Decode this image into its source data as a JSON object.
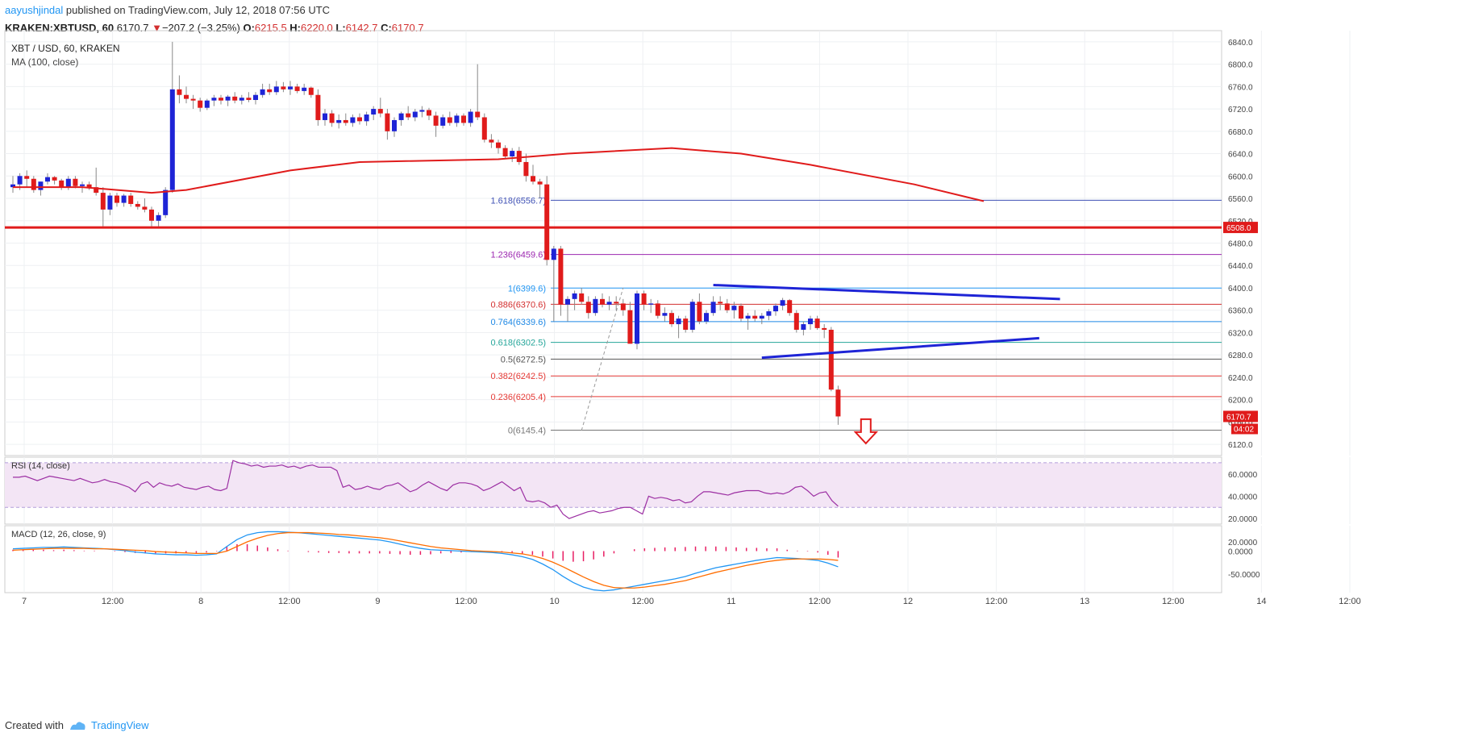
{
  "header": {
    "publisher": "aayushjindal",
    "published_text": "published on TradingView.com, July 12, 2018 07:56 UTC",
    "symbol": "KRAKEN:XBTUSD, 60",
    "last": "6170.7",
    "change": "−207.2 (−3.25%)",
    "o_label": "O:",
    "o": "6215.5",
    "h_label": "H:",
    "h": "6220.0",
    "l_label": "L:",
    "l": "6142.7",
    "c_label": "C:",
    "c": "6170.7",
    "arrow": "▼"
  },
  "footer": {
    "created_with": "Created with",
    "brand": "TradingView"
  },
  "chart_data": {
    "type": "candlestick",
    "title": "XBT / USD, 60, KRAKEN",
    "indicator_label": "MA (100, close)",
    "colors": {
      "up": "#1e24d6",
      "down": "#e01b1b",
      "ma": "#e01b1b",
      "rsi": "#9c2fa3",
      "macd": "#2196f3",
      "signal": "#ff6d00",
      "hist": "#e91e63"
    },
    "y_range": [
      6100,
      6860
    ],
    "y_ticks": [
      "6840.0",
      "6800.0",
      "6760.0",
      "6720.0",
      "6680.0",
      "6640.0",
      "6600.0",
      "6560.0",
      "6520.0",
      "6480.0",
      "6440.0",
      "6400.0",
      "6360.0",
      "6320.0",
      "6280.0",
      "6240.0",
      "6200.0",
      "6160.0",
      "6120.0"
    ],
    "x_ticks": [
      "7",
      "12:00",
      "8",
      "12:00",
      "9",
      "12:00",
      "10",
      "12:00",
      "11",
      "12:00",
      "12",
      "12:00",
      "13",
      "12:00",
      "14",
      "12:00"
    ],
    "support_line": {
      "value": 6508.0,
      "label": "6508.0"
    },
    "last_price": {
      "label": "6170.7",
      "countdown": "04:02"
    },
    "fib_levels": [
      {
        "label": "1.618(6556.7)",
        "value": 6556.7,
        "color": "#3f51b5"
      },
      {
        "label": "1.236(6459.6)",
        "value": 6459.6,
        "color": "#9c27b0"
      },
      {
        "label": "1(6399.6)",
        "value": 6399.6,
        "color": "#2196f3"
      },
      {
        "label": "0.886(6370.6)",
        "value": 6370.6,
        "color": "#d32f2f"
      },
      {
        "label": "0.764(6339.6)",
        "value": 6339.6,
        "color": "#1e88e5"
      },
      {
        "label": "0.618(6302.5)",
        "value": 6302.5,
        "color": "#26a69a"
      },
      {
        "label": "0.5(6272.5)",
        "value": 6272.5,
        "color": "#555555"
      },
      {
        "label": "0.382(6242.5)",
        "value": 6242.5,
        "color": "#e53935"
      },
      {
        "label": "0.236(6205.4)",
        "value": 6205.4,
        "color": "#e53935"
      },
      {
        "label": "0(6145.4)",
        "value": 6145.4,
        "color": "#777777"
      }
    ],
    "candles": [
      [
        6580,
        6600,
        6570,
        6585
      ],
      [
        6585,
        6605,
        6575,
        6600
      ],
      [
        6600,
        6610,
        6580,
        6595
      ],
      [
        6595,
        6600,
        6570,
        6575
      ],
      [
        6575,
        6590,
        6565,
        6590
      ],
      [
        6590,
        6605,
        6585,
        6598
      ],
      [
        6598,
        6600,
        6585,
        6592
      ],
      [
        6592,
        6595,
        6575,
        6580
      ],
      [
        6580,
        6600,
        6575,
        6595
      ],
      [
        6595,
        6600,
        6578,
        6582
      ],
      [
        6582,
        6590,
        6570,
        6585
      ],
      [
        6585,
        6590,
        6575,
        6580
      ],
      [
        6580,
        6615,
        6565,
        6570
      ],
      [
        6570,
        6580,
        6510,
        6540
      ],
      [
        6540,
        6570,
        6530,
        6565
      ],
      [
        6565,
        6570,
        6545,
        6552
      ],
      [
        6552,
        6568,
        6545,
        6565
      ],
      [
        6565,
        6570,
        6545,
        6550
      ],
      [
        6550,
        6555,
        6540,
        6545
      ],
      [
        6545,
        6560,
        6535,
        6540
      ],
      [
        6540,
        6545,
        6510,
        6520
      ],
      [
        6520,
        6535,
        6510,
        6530
      ],
      [
        6530,
        6580,
        6525,
        6575
      ],
      [
        6575,
        6840,
        6570,
        6755
      ],
      [
        6755,
        6780,
        6730,
        6745
      ],
      [
        6745,
        6760,
        6730,
        6738
      ],
      [
        6738,
        6745,
        6720,
        6735
      ],
      [
        6735,
        6740,
        6715,
        6722
      ],
      [
        6722,
        6738,
        6718,
        6735
      ],
      [
        6735,
        6745,
        6725,
        6740
      ],
      [
        6740,
        6745,
        6728,
        6735
      ],
      [
        6735,
        6745,
        6725,
        6742
      ],
      [
        6742,
        6750,
        6730,
        6735
      ],
      [
        6735,
        6745,
        6728,
        6740
      ],
      [
        6740,
        6750,
        6732,
        6736
      ],
      [
        6736,
        6750,
        6728,
        6745
      ],
      [
        6745,
        6765,
        6740,
        6755
      ],
      [
        6755,
        6765,
        6745,
        6750
      ],
      [
        6750,
        6770,
        6745,
        6760
      ],
      [
        6760,
        6768,
        6750,
        6755
      ],
      [
        6755,
        6770,
        6745,
        6760
      ],
      [
        6760,
        6765,
        6748,
        6752
      ],
      [
        6752,
        6765,
        6745,
        6758
      ],
      [
        6758,
        6760,
        6740,
        6745
      ],
      [
        6745,
        6755,
        6690,
        6700
      ],
      [
        6700,
        6720,
        6690,
        6712
      ],
      [
        6712,
        6718,
        6688,
        6695
      ],
      [
        6695,
        6710,
        6685,
        6700
      ],
      [
        6700,
        6712,
        6690,
        6695
      ],
      [
        6695,
        6710,
        6688,
        6705
      ],
      [
        6705,
        6712,
        6692,
        6698
      ],
      [
        6698,
        6715,
        6690,
        6710
      ],
      [
        6710,
        6725,
        6700,
        6720
      ],
      [
        6720,
        6740,
        6705,
        6712
      ],
      [
        6712,
        6720,
        6665,
        6680
      ],
      [
        6680,
        6705,
        6670,
        6700
      ],
      [
        6700,
        6715,
        6690,
        6712
      ],
      [
        6712,
        6725,
        6700,
        6705
      ],
      [
        6705,
        6720,
        6698,
        6715
      ],
      [
        6715,
        6725,
        6705,
        6718
      ],
      [
        6718,
        6722,
        6700,
        6708
      ],
      [
        6708,
        6715,
        6670,
        6690
      ],
      [
        6690,
        6710,
        6685,
        6705
      ],
      [
        6705,
        6715,
        6690,
        6695
      ],
      [
        6695,
        6712,
        6688,
        6708
      ],
      [
        6708,
        6712,
        6690,
        6695
      ],
      [
        6695,
        6720,
        6688,
        6715
      ],
      [
        6715,
        6800,
        6700,
        6705
      ],
      [
        6705,
        6712,
        6660,
        6665
      ],
      [
        6665,
        6675,
        6650,
        6660
      ],
      [
        6660,
        6665,
        6640,
        6650
      ],
      [
        6650,
        6655,
        6630,
        6635
      ],
      [
        6635,
        6650,
        6625,
        6645
      ],
      [
        6645,
        6652,
        6620,
        6625
      ],
      [
        6625,
        6640,
        6590,
        6600
      ],
      [
        6600,
        6620,
        6585,
        6590
      ],
      [
        6590,
        6595,
        6560,
        6585
      ],
      [
        6585,
        6600,
        6440,
        6450
      ],
      [
        6450,
        6475,
        6340,
        6470
      ],
      [
        6470,
        6475,
        6350,
        6370
      ],
      [
        6370,
        6385,
        6340,
        6380
      ],
      [
        6380,
        6395,
        6360,
        6390
      ],
      [
        6390,
        6400,
        6370,
        6375
      ],
      [
        6375,
        6385,
        6345,
        6355
      ],
      [
        6355,
        6385,
        6350,
        6380
      ],
      [
        6380,
        6390,
        6365,
        6370
      ],
      [
        6370,
        6385,
        6360,
        6375
      ],
      [
        6375,
        6385,
        6360,
        6372
      ],
      [
        6372,
        6380,
        6350,
        6360
      ],
      [
        6360,
        6375,
        6300,
        6300
      ],
      [
        6300,
        6395,
        6290,
        6390
      ],
      [
        6390,
        6395,
        6360,
        6370
      ],
      [
        6370,
        6380,
        6355,
        6372
      ],
      [
        6372,
        6378,
        6345,
        6350
      ],
      [
        6350,
        6365,
        6340,
        6355
      ],
      [
        6355,
        6360,
        6330,
        6335
      ],
      [
        6335,
        6350,
        6310,
        6345
      ],
      [
        6345,
        6350,
        6320,
        6325
      ],
      [
        6325,
        6380,
        6320,
        6375
      ],
      [
        6375,
        6390,
        6335,
        6340
      ],
      [
        6340,
        6360,
        6335,
        6355
      ],
      [
        6355,
        6385,
        6350,
        6375
      ],
      [
        6375,
        6385,
        6360,
        6372
      ],
      [
        6372,
        6380,
        6355,
        6360
      ],
      [
        6360,
        6375,
        6345,
        6368
      ],
      [
        6368,
        6372,
        6340,
        6345
      ],
      [
        6345,
        6355,
        6325,
        6350
      ],
      [
        6350,
        6360,
        6340,
        6345
      ],
      [
        6345,
        6355,
        6335,
        6350
      ],
      [
        6350,
        6362,
        6342,
        6358
      ],
      [
        6358,
        6372,
        6350,
        6368
      ],
      [
        6368,
        6382,
        6360,
        6378
      ],
      [
        6378,
        6380,
        6350,
        6355
      ],
      [
        6355,
        6360,
        6320,
        6325
      ],
      [
        6325,
        6340,
        6315,
        6335
      ],
      [
        6335,
        6350,
        6325,
        6345
      ],
      [
        6345,
        6350,
        6325,
        6328
      ],
      [
        6328,
        6335,
        6310,
        6325
      ],
      [
        6325,
        6330,
        6215,
        6218
      ],
      [
        6218,
        6225,
        6155,
        6170
      ]
    ],
    "ma_points": [
      [
        0,
        6580
      ],
      [
        10,
        6580
      ],
      [
        20,
        6570
      ],
      [
        25,
        6575
      ],
      [
        40,
        6610
      ],
      [
        50,
        6625
      ],
      [
        70,
        6630
      ],
      [
        80,
        6640
      ],
      [
        95,
        6650
      ],
      [
        105,
        6640
      ],
      [
        115,
        6620
      ],
      [
        130,
        6585
      ],
      [
        140,
        6555
      ]
    ],
    "triangle": {
      "upper": [
        [
          101,
          6405
        ],
        [
          151,
          6380
        ]
      ],
      "lower": [
        [
          108,
          6275
        ],
        [
          148,
          6310
        ]
      ]
    },
    "fib_anchor": [
      [
        82,
        6145
      ],
      [
        88,
        6400
      ]
    ],
    "rsi": {
      "label": "RSI (14, close)",
      "ticks": [
        "60.0000",
        "40.0000",
        "20.0000"
      ],
      "range": [
        15,
        75
      ],
      "bands": [
        70,
        30
      ],
      "values": [
        57,
        57,
        58,
        56,
        54,
        56,
        58,
        57,
        56,
        55,
        54,
        56,
        54,
        52,
        53,
        55,
        53,
        52,
        50,
        48,
        44,
        51,
        53,
        48,
        52,
        50,
        49,
        51,
        48,
        47,
        46,
        48,
        49,
        46,
        45,
        47,
        72,
        70,
        69,
        67,
        68,
        66,
        67,
        67,
        68,
        66,
        67,
        65,
        67,
        68,
        66,
        66,
        66,
        63,
        48,
        50,
        46,
        47,
        49,
        47,
        46,
        49,
        50,
        52,
        48,
        44,
        46,
        50,
        53,
        50,
        47,
        45,
        50,
        52,
        52,
        51,
        49,
        45,
        47,
        50,
        53,
        49,
        45,
        48,
        36,
        35,
        36,
        34,
        30,
        32,
        24,
        20,
        22,
        24,
        26,
        27,
        25,
        26,
        27,
        29,
        30,
        30,
        27,
        24,
        40,
        38,
        39,
        38,
        36,
        37,
        34,
        35,
        40,
        44,
        44,
        43,
        42,
        41,
        43,
        44,
        45,
        45,
        45,
        43,
        42,
        43,
        42,
        44,
        48,
        49,
        45,
        40,
        43,
        44,
        36,
        31
      ]
    },
    "macd": {
      "label": "MACD (12, 26, close, 9)",
      "ticks": [
        "20.0000",
        "0.0000",
        "-50.0000"
      ],
      "range": [
        -90,
        55
      ],
      "macd_values": [
        5,
        6,
        7,
        8,
        8,
        9,
        8,
        7,
        6,
        5,
        3,
        1,
        -2,
        -4,
        -6,
        -7,
        -8,
        -8,
        -9,
        -8,
        -6,
        10,
        25,
        35,
        40,
        42,
        42,
        41,
        40,
        38,
        36,
        34,
        32,
        30,
        28,
        26,
        24,
        20,
        15,
        10,
        6,
        3,
        2,
        1,
        0,
        -1,
        -2,
        -3,
        -5,
        -8,
        -12,
        -18,
        -28,
        -40,
        -55,
        -68,
        -78,
        -84,
        -86,
        -84,
        -80,
        -76,
        -72,
        -68,
        -64,
        -60,
        -55,
        -48,
        -42,
        -36,
        -32,
        -28,
        -24,
        -20,
        -17,
        -14,
        -15,
        -16,
        -18,
        -20,
        -26,
        -34
      ],
      "signal_values": [
        2,
        3,
        4,
        5,
        6,
        6,
        6,
        6,
        5,
        5,
        4,
        3,
        2,
        1,
        -1,
        -2,
        -3,
        -4,
        -5,
        -5,
        -5,
        0,
        10,
        20,
        28,
        34,
        38,
        40,
        40,
        40,
        39,
        38,
        36,
        35,
        33,
        31,
        29,
        26,
        22,
        18,
        14,
        10,
        7,
        5,
        3,
        1,
        0,
        -1,
        -2,
        -4,
        -6,
        -10,
        -16,
        -24,
        -34,
        -45,
        -56,
        -66,
        -74,
        -79,
        -80,
        -80,
        -78,
        -75,
        -72,
        -68,
        -64,
        -58,
        -52,
        -46,
        -41,
        -36,
        -31,
        -27,
        -23,
        -20,
        -18,
        -17,
        -17,
        -17,
        -18,
        -20
      ],
      "hist_values": [
        3,
        3,
        3,
        3,
        2,
        3,
        2,
        1,
        1,
        0,
        -1,
        -2,
        -4,
        -5,
        -5,
        -5,
        -5,
        -4,
        -4,
        -3,
        -1,
        10,
        15,
        15,
        12,
        8,
        4,
        1,
        0,
        -2,
        -3,
        -4,
        -4,
        -5,
        -5,
        -5,
        -5,
        -6,
        -7,
        -8,
        -8,
        -7,
        -5,
        -4,
        -3,
        -2,
        -2,
        -2,
        -3,
        -4,
        -6,
        -8,
        -12,
        -16,
        -21,
        -23,
        -22,
        -18,
        -12,
        -5,
        0,
        4,
        6,
        7,
        8,
        8,
        9,
        10,
        10,
        10,
        9,
        8,
        7,
        7,
        6,
        6,
        3,
        1,
        -1,
        -3,
        -8,
        -14
      ]
    }
  }
}
